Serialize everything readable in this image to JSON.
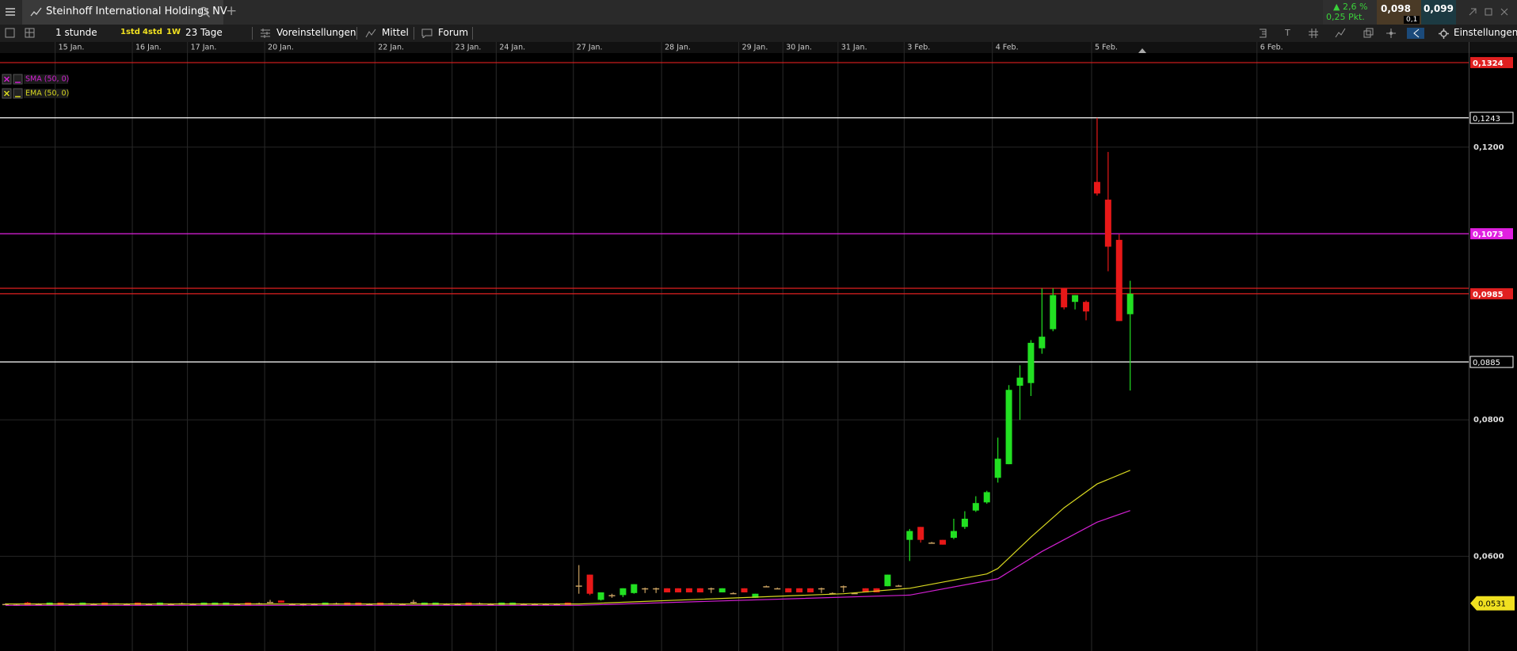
{
  "header": {
    "title": "Steinhoff International Holdings NV",
    "add_tab": "+",
    "change_pct": "▲ 2,6 %",
    "change_pts": "0,25 Pkt.",
    "bid": "0,098",
    "ask": "0,099",
    "spread": "0,1"
  },
  "toolbar": {
    "interval": "1 stunde",
    "presets": [
      "1std",
      "4std",
      "1W"
    ],
    "range": "23 Tage",
    "buttons": [
      "Voreinstellungen",
      "Mittel",
      "Forum"
    ],
    "settings": "Einstellungen"
  },
  "chart_data": {
    "type": "candlestick",
    "up_color": "#22e022",
    "down_color": "#e81818",
    "doji_color": "#c8a060",
    "xlim": [
      -0.5,
      132.7
    ],
    "ylim": [
      0.0461,
      0.1338
    ],
    "xticks": [
      {
        "value": 4.5,
        "label": "15 Jan."
      },
      {
        "value": 11.5,
        "label": "16 Jan."
      },
      {
        "value": 16.5,
        "label": "17 Jan."
      },
      {
        "value": 23.5,
        "label": "20 Jan."
      },
      {
        "value": 33.5,
        "label": "22 Jan."
      },
      {
        "value": 40.5,
        "label": "23 Jan."
      },
      {
        "value": 44.5,
        "label": "24 Jan."
      },
      {
        "value": 51.5,
        "label": "27 Jan."
      },
      {
        "value": 59.5,
        "label": "28 Jan."
      },
      {
        "value": 66.5,
        "label": "29 Jan."
      },
      {
        "value": 70.5,
        "label": "30 Jan."
      },
      {
        "value": 75.5,
        "label": "31 Jan."
      },
      {
        "value": 81.5,
        "label": "3 Feb."
      },
      {
        "value": 89.5,
        "label": "4 Feb."
      },
      {
        "value": 98.5,
        "label": "5 Feb."
      },
      {
        "value": 113.5,
        "label": "6 Feb."
      }
    ],
    "yticks": [
      {
        "value": 0.06,
        "label": "0,0600"
      },
      {
        "value": 0.08,
        "label": "0,0800"
      },
      {
        "value": 0.12,
        "label": "0,1200"
      }
    ],
    "grid": true,
    "levels": [
      {
        "value": 0.1324,
        "label": "0,1324",
        "color": "#e02020",
        "style": "filled"
      },
      {
        "value": 0.1243,
        "label": "0,1243",
        "color": "#ffffff",
        "style": "outline"
      },
      {
        "value": 0.1073,
        "label": "0,1073",
        "color": "#e020e0",
        "style": "filled"
      },
      {
        "value": 0.0993,
        "color": "#e02020",
        "style": "line"
      },
      {
        "value": 0.0985,
        "label": "0,0985",
        "color": "#e02020",
        "style": "filled"
      },
      {
        "value": 0.0885,
        "label": "0,0885",
        "color": "#ffffff",
        "style": "outline"
      },
      {
        "value": 0.0531,
        "label": "0,0531",
        "color": "#f0e020",
        "style": "flag"
      }
    ],
    "indicators": [
      {
        "name": "SMA (50, 0)",
        "color": "#d020d0",
        "x": [
          0,
          52,
          82,
          90,
          94,
          99,
          102
        ],
        "values": [
          0.0528,
          0.0528,
          0.0543,
          0.0567,
          0.0607,
          0.065,
          0.0667
        ]
      },
      {
        "name": "EMA (50, 0)",
        "color": "#d8d820",
        "x": [
          0,
          52,
          76,
          82,
          89,
          90,
          93,
          96,
          99,
          102
        ],
        "values": [
          0.053,
          0.053,
          0.0545,
          0.0553,
          0.0574,
          0.0582,
          0.0628,
          0.0671,
          0.0706,
          0.0726
        ]
      }
    ],
    "x": [
      0,
      1,
      2,
      3,
      4,
      5,
      6,
      7,
      8,
      9,
      10,
      11,
      12,
      13,
      14,
      15,
      16,
      17,
      18,
      19,
      20,
      21,
      22,
      23,
      24,
      25,
      26,
      27,
      28,
      29,
      30,
      31,
      32,
      33,
      34,
      35,
      36,
      37,
      38,
      39,
      40,
      41,
      42,
      43,
      44,
      45,
      46,
      47,
      48,
      49,
      50,
      51,
      52,
      53,
      54,
      55,
      56,
      57,
      58,
      59,
      60,
      61,
      62,
      63,
      64,
      65,
      66,
      67,
      68,
      69,
      70,
      71,
      72,
      73,
      74,
      75,
      76,
      77,
      78,
      79,
      80,
      81,
      82,
      83,
      84,
      85,
      86,
      87,
      88,
      89,
      90,
      91,
      92,
      93,
      94,
      95,
      96,
      97,
      98,
      99,
      100,
      101,
      102
    ],
    "ohlc": [
      [
        0.053,
        0.0531,
        0.0529,
        0.053
      ],
      [
        0.0529,
        0.053,
        0.0528,
        0.0529
      ],
      [
        0.0532,
        0.0533,
        0.0528,
        0.0528
      ],
      [
        0.053,
        0.0531,
        0.0529,
        0.053
      ],
      [
        0.0528,
        0.0532,
        0.0528,
        0.0532
      ],
      [
        0.0532,
        0.0532,
        0.0528,
        0.0528
      ],
      [
        0.053,
        0.0531,
        0.0529,
        0.053
      ],
      [
        0.0528,
        0.0532,
        0.0528,
        0.0532
      ],
      [
        0.053,
        0.0531,
        0.0529,
        0.053
      ],
      [
        0.0532,
        0.0532,
        0.0528,
        0.0528
      ],
      [
        0.0531,
        0.0531,
        0.0529,
        0.0531
      ],
      [
        0.053,
        0.0531,
        0.0529,
        0.053
      ],
      [
        0.0532,
        0.0532,
        0.0528,
        0.0528
      ],
      [
        0.053,
        0.0531,
        0.0529,
        0.053
      ],
      [
        0.0528,
        0.0532,
        0.0528,
        0.0532
      ],
      [
        0.053,
        0.0531,
        0.0529,
        0.053
      ],
      [
        0.0531,
        0.0532,
        0.0529,
        0.0531
      ],
      [
        0.053,
        0.0531,
        0.0529,
        0.053
      ],
      [
        0.0528,
        0.0532,
        0.0528,
        0.0532
      ],
      [
        0.0528,
        0.0532,
        0.0528,
        0.0532
      ],
      [
        0.0528,
        0.0532,
        0.0528,
        0.0532
      ],
      [
        0.053,
        0.0531,
        0.0528,
        0.053
      ],
      [
        0.0532,
        0.0532,
        0.0528,
        0.0528
      ],
      [
        0.0531,
        0.0532,
        0.0529,
        0.0531
      ],
      [
        0.0533,
        0.0536,
        0.0532,
        0.0533
      ],
      [
        0.0535,
        0.0535,
        0.0532,
        0.0532
      ],
      [
        0.053,
        0.0531,
        0.0528,
        0.053
      ],
      [
        0.053,
        0.0531,
        0.0527,
        0.053
      ],
      [
        0.053,
        0.0531,
        0.0528,
        0.053
      ],
      [
        0.0528,
        0.0532,
        0.0528,
        0.0532
      ],
      [
        0.0531,
        0.0532,
        0.0529,
        0.0531
      ],
      [
        0.0532,
        0.0532,
        0.0528,
        0.0528
      ],
      [
        0.0532,
        0.0532,
        0.0528,
        0.0528
      ],
      [
        0.053,
        0.0531,
        0.0529,
        0.053
      ],
      [
        0.0532,
        0.0532,
        0.0528,
        0.0528
      ],
      [
        0.0531,
        0.0532,
        0.0529,
        0.0531
      ],
      [
        0.053,
        0.0531,
        0.0528,
        0.053
      ],
      [
        0.0533,
        0.0536,
        0.053,
        0.0533
      ],
      [
        0.0528,
        0.0532,
        0.0528,
        0.0532
      ],
      [
        0.0528,
        0.0532,
        0.0528,
        0.0532
      ],
      [
        0.053,
        0.0531,
        0.0529,
        0.053
      ],
      [
        0.053,
        0.0531,
        0.0529,
        0.053
      ],
      [
        0.0532,
        0.0532,
        0.0528,
        0.0528
      ],
      [
        0.0531,
        0.0532,
        0.0529,
        0.0531
      ],
      [
        0.053,
        0.0531,
        0.0528,
        0.053
      ],
      [
        0.0528,
        0.0532,
        0.0528,
        0.0532
      ],
      [
        0.0528,
        0.0532,
        0.0528,
        0.0532
      ],
      [
        0.053,
        0.0531,
        0.0528,
        0.053
      ],
      [
        0.053,
        0.0531,
        0.0528,
        0.053
      ],
      [
        0.053,
        0.0531,
        0.0528,
        0.053
      ],
      [
        0.053,
        0.0531,
        0.0528,
        0.053
      ],
      [
        0.0532,
        0.0532,
        0.0528,
        0.0528
      ],
      [
        0.0557,
        0.0587,
        0.0545,
        0.0557
      ],
      [
        0.0573,
        0.0573,
        0.0543,
        0.0545
      ],
      [
        0.0536,
        0.0547,
        0.0535,
        0.0547
      ],
      [
        0.0543,
        0.0545,
        0.0539,
        0.0543
      ],
      [
        0.0543,
        0.0553,
        0.054,
        0.0553
      ],
      [
        0.0546,
        0.0559,
        0.0545,
        0.0559
      ],
      [
        0.0553,
        0.0554,
        0.0546,
        0.0553
      ],
      [
        0.0553,
        0.0554,
        0.0546,
        0.0553
      ],
      [
        0.0553,
        0.0553,
        0.0547,
        0.0547
      ],
      [
        0.0553,
        0.0553,
        0.0547,
        0.0547
      ],
      [
        0.0553,
        0.0553,
        0.0547,
        0.0547
      ],
      [
        0.0553,
        0.0553,
        0.0547,
        0.0547
      ],
      [
        0.0553,
        0.0554,
        0.0546,
        0.0553
      ],
      [
        0.0547,
        0.0553,
        0.0547,
        0.0553
      ],
      [
        0.0546,
        0.0547,
        0.0545,
        0.0546
      ],
      [
        0.0553,
        0.0553,
        0.0547,
        0.0547
      ],
      [
        0.0539,
        0.0545,
        0.0539,
        0.0545
      ],
      [
        0.0556,
        0.0557,
        0.0555,
        0.0556
      ],
      [
        0.0553,
        0.0554,
        0.0552,
        0.0553
      ],
      [
        0.0553,
        0.0553,
        0.0547,
        0.0547
      ],
      [
        0.0553,
        0.0553,
        0.0547,
        0.0547
      ],
      [
        0.0553,
        0.0553,
        0.0547,
        0.0547
      ],
      [
        0.0553,
        0.0554,
        0.0546,
        0.0553
      ],
      [
        0.0546,
        0.0547,
        0.0545,
        0.0546
      ],
      [
        0.0556,
        0.0557,
        0.0547,
        0.0556
      ],
      [
        0.0546,
        0.0547,
        0.0545,
        0.0546
      ],
      [
        0.0553,
        0.0553,
        0.0547,
        0.0547
      ],
      [
        0.0553,
        0.0553,
        0.0547,
        0.0547
      ],
      [
        0.0556,
        0.0573,
        0.0556,
        0.0573
      ],
      [
        0.0557,
        0.0558,
        0.0556,
        0.0557
      ],
      [
        0.0624,
        0.064,
        0.0593,
        0.0637
      ],
      [
        0.0643,
        0.0643,
        0.062,
        0.0624
      ],
      [
        0.062,
        0.0621,
        0.0619,
        0.062
      ],
      [
        0.0624,
        0.0624,
        0.0617,
        0.0617
      ],
      [
        0.0627,
        0.0655,
        0.0625,
        0.0637
      ],
      [
        0.0643,
        0.0666,
        0.064,
        0.0655
      ],
      [
        0.0667,
        0.0688,
        0.0665,
        0.0678
      ],
      [
        0.0679,
        0.0696,
        0.0677,
        0.0694
      ],
      [
        0.0715,
        0.0774,
        0.0708,
        0.0743
      ],
      [
        0.0735,
        0.0851,
        0.0735,
        0.0844
      ],
      [
        0.085,
        0.088,
        0.08,
        0.0862
      ],
      [
        0.0854,
        0.0917,
        0.0835,
        0.0913
      ],
      [
        0.0905,
        0.0993,
        0.0897,
        0.0922
      ],
      [
        0.0933,
        0.0993,
        0.093,
        0.0983
      ],
      [
        0.0993,
        0.0993,
        0.0962,
        0.0965
      ],
      [
        0.0973,
        0.0983,
        0.0962,
        0.0983
      ],
      [
        0.0973,
        0.0975,
        0.0946,
        0.0959
      ],
      [
        0.1149,
        0.1243,
        0.1129,
        0.1132
      ],
      [
        0.1123,
        0.1193,
        0.1018,
        0.1054
      ],
      [
        0.1064,
        0.1072,
        0.0945,
        0.0945
      ],
      [
        0.0955,
        0.1004,
        0.0843,
        0.0985
      ]
    ]
  }
}
